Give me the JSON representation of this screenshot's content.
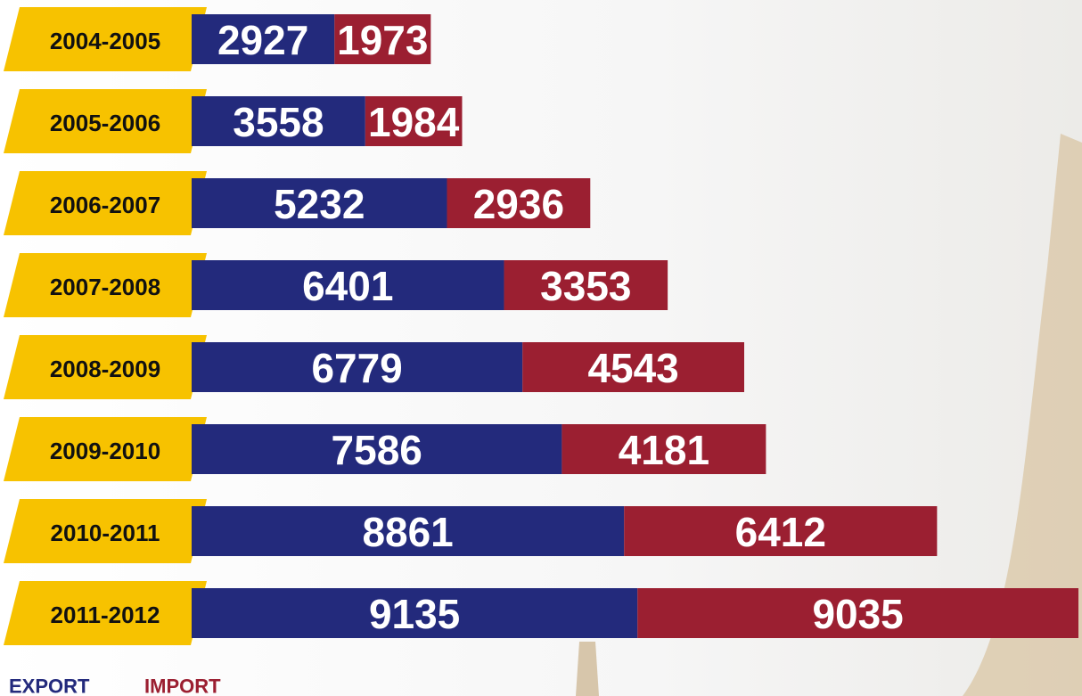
{
  "chart_data": {
    "type": "stacked-bar-horizontal",
    "categories": [
      "2004-2005",
      "2005-2006",
      "2006-2007",
      "2007-2008",
      "2008-2009",
      "2009-2010",
      "2010-2011",
      "2011-2012"
    ],
    "series": [
      {
        "name": "EXPORT",
        "color": "#232a7c",
        "values": [
          2927,
          3558,
          5232,
          6401,
          6779,
          7586,
          8861,
          9135
        ]
      },
      {
        "name": "IMPORT",
        "color": "#9b1f31",
        "values": [
          1973,
          1984,
          2936,
          3353,
          4543,
          4181,
          6412,
          9035
        ]
      }
    ],
    "label_color": "#f7c200"
  }
}
